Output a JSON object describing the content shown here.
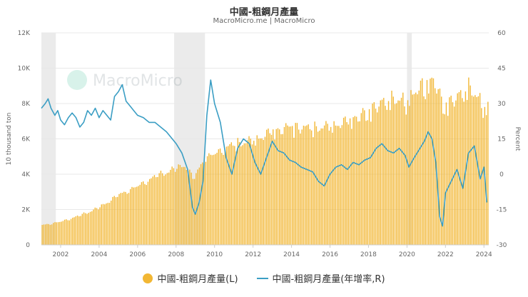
{
  "title": "中國-粗鋼月產量",
  "subtitle": "MacroMicro.me | MacroMicro",
  "watermark": "MacroMicro",
  "colors": {
    "bar": "#f2b734",
    "line": "#3b9ec4",
    "recession": "#ebebeb",
    "grid": "#e8e8e8"
  },
  "chart_data": {
    "type": "bar+line",
    "title": "中國-粗鋼月產量",
    "ylabel_left": "10 thousand ton",
    "ylabel_right": "Percent",
    "ylim_left": [
      0,
      12000
    ],
    "ylim_right": [
      -30,
      60
    ],
    "yticks_left": [
      "0",
      "2K",
      "4K",
      "6K",
      "8K",
      "10K",
      "12K"
    ],
    "yticks_right": [
      "-30",
      "-15",
      "0",
      "15",
      "30",
      "45",
      "60"
    ],
    "xticks": [
      "2002",
      "2004",
      "2006",
      "2008",
      "2010",
      "2012",
      "2014",
      "2016",
      "2018",
      "2020",
      "2022",
      "2024"
    ],
    "x_range": [
      2001.0,
      2024.25
    ],
    "recession_bands": [
      [
        2001.0,
        2001.75
      ],
      [
        2007.9,
        2009.5
      ],
      [
        2020.0,
        2020.25
      ]
    ],
    "grid": true,
    "legend_position": "bottom",
    "bar_series": {
      "name": "中國-粗鋼月產量(L)",
      "anchors_year": [
        2001.0,
        2002.0,
        2003.0,
        2004.0,
        2005.0,
        2006.0,
        2007.0,
        2007.75,
        2008.5,
        2008.9,
        2009.5,
        2010.0,
        2011.0,
        2012.0,
        2013.0,
        2014.0,
        2015.0,
        2016.0,
        2017.0,
        2018.0,
        2019.0,
        2020.0,
        2020.5,
        2021.4,
        2021.9,
        2022.5,
        2023.2,
        2023.8,
        2024.1
      ],
      "anchors_value": [
        1100,
        1300,
        1650,
        2100,
        2800,
        3300,
        3900,
        4200,
        4500,
        3700,
        4900,
        5100,
        5700,
        5900,
        6400,
        6700,
        6600,
        6700,
        7000,
        7600,
        8300,
        8200,
        8800,
        9400,
        7900,
        8300,
        9000,
        8200,
        7800
      ]
    },
    "line_series": {
      "name": "中國-粗鋼月產量(年增率,R)",
      "x": [
        2001.0,
        2001.2,
        2001.35,
        2001.5,
        2001.7,
        2001.85,
        2002.0,
        2002.2,
        2002.4,
        2002.6,
        2002.8,
        2003.0,
        2003.2,
        2003.4,
        2003.6,
        2003.8,
        2004.0,
        2004.2,
        2004.4,
        2004.6,
        2004.8,
        2005.0,
        2005.2,
        2005.4,
        2005.6,
        2005.8,
        2006.0,
        2006.3,
        2006.6,
        2006.9,
        2007.2,
        2007.5,
        2007.8,
        2008.0,
        2008.3,
        2008.6,
        2008.85,
        2009.0,
        2009.2,
        2009.4,
        2009.6,
        2009.8,
        2010.0,
        2010.3,
        2010.6,
        2010.9,
        2011.2,
        2011.5,
        2011.8,
        2012.1,
        2012.4,
        2012.7,
        2013.0,
        2013.3,
        2013.6,
        2013.9,
        2014.2,
        2014.5,
        2014.8,
        2015.1,
        2015.4,
        2015.7,
        2016.0,
        2016.3,
        2016.6,
        2016.9,
        2017.2,
        2017.5,
        2017.8,
        2018.1,
        2018.4,
        2018.7,
        2019.0,
        2019.3,
        2019.6,
        2019.9,
        2020.1,
        2020.3,
        2020.6,
        2020.9,
        2021.1,
        2021.3,
        2021.5,
        2021.7,
        2021.85,
        2022.0,
        2022.3,
        2022.6,
        2022.9,
        2023.2,
        2023.5,
        2023.8,
        2024.0,
        2024.15
      ],
      "y": [
        28,
        30,
        32,
        28,
        25,
        27,
        23,
        21,
        24,
        26,
        24,
        20,
        22,
        27,
        25,
        28,
        24,
        27,
        25,
        23,
        33,
        35,
        38,
        31,
        29,
        27,
        25,
        24,
        22,
        22,
        20,
        18,
        15,
        13,
        9,
        2,
        -14,
        -17,
        -12,
        -3,
        25,
        40,
        30,
        22,
        7,
        0,
        11,
        15,
        13,
        5,
        0,
        7,
        14,
        10,
        9,
        6,
        5,
        3,
        2,
        1,
        -3,
        -5,
        0,
        3,
        4,
        2,
        5,
        4,
        6,
        7,
        11,
        13,
        10,
        9,
        11,
        8,
        3,
        6,
        10,
        14,
        18,
        15,
        5,
        -18,
        -22,
        -8,
        -3,
        2,
        -6,
        9,
        12,
        -2,
        3,
        -12
      ]
    }
  },
  "legend": {
    "bar_label": "中國-粗鋼月產量(L)",
    "line_label": "中國-粗鋼月產量(年增率,R)"
  }
}
